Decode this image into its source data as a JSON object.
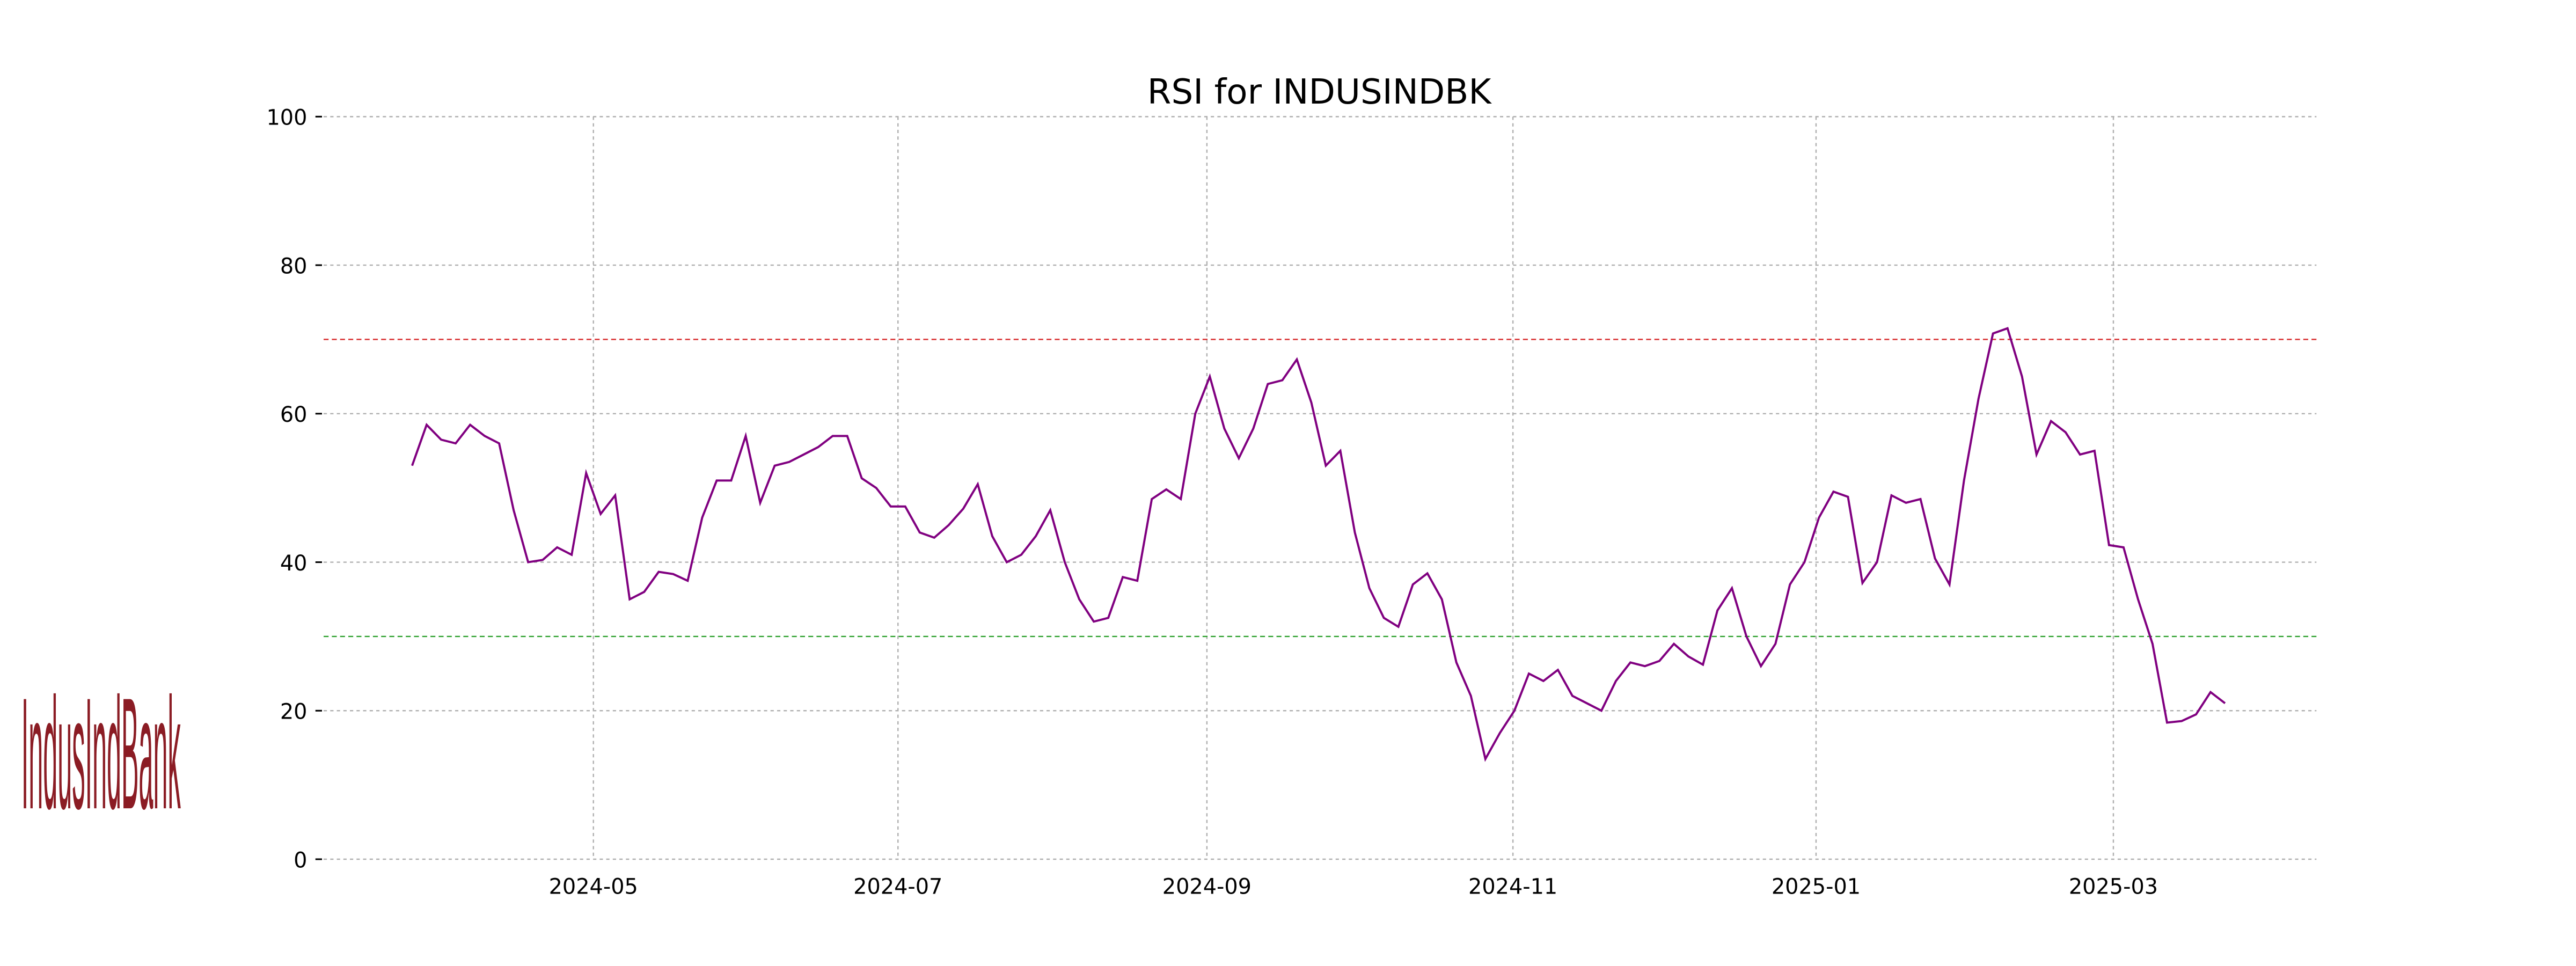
{
  "chart_data": {
    "type": "line",
    "title": "RSI for INDUSINDBK",
    "logo": "IndusIndBank",
    "series": [
      {
        "color": "#800080",
        "values": [
          53,
          58.5,
          56.5,
          56,
          58.5,
          57,
          56,
          47,
          40,
          40.3,
          42,
          41,
          52,
          46.5,
          49,
          35,
          36,
          38.7,
          38.4,
          37.5,
          46,
          51,
          51,
          57,
          48,
          53,
          53.5,
          54.5,
          55.5,
          57,
          57,
          51.3,
          50,
          47.5,
          47.5,
          44,
          43.3,
          45,
          47.2,
          50.5,
          43.5,
          40,
          41,
          43.5,
          47,
          40,
          35,
          32,
          32.5,
          38,
          37.5,
          48.5,
          49.8,
          48.5,
          60,
          65,
          58,
          54,
          58,
          64,
          64.5,
          67.3,
          61.5,
          53,
          55,
          44,
          36.5,
          32.5,
          31.3,
          37,
          38.5,
          35,
          26.5,
          22,
          13.5,
          17,
          20,
          25,
          24,
          25.5,
          22,
          21,
          20,
          24,
          26.5,
          26,
          26.7,
          29,
          27.3,
          26.2,
          33.5,
          36.5,
          30,
          26,
          29,
          37,
          40,
          46,
          49.5,
          48.8,
          37.2,
          40,
          49,
          48,
          48.5,
          40.5,
          37,
          51,
          62,
          70.8,
          71.5,
          65,
          54.5,
          59,
          57.5,
          54.5,
          55,
          42.3,
          42,
          35,
          29,
          18.4,
          18.6,
          19.5,
          22.5,
          21
        ]
      }
    ],
    "hlines": [
      {
        "value": 70,
        "color": "#d62728"
      },
      {
        "value": 30,
        "color": "#2ca02c"
      }
    ],
    "xlim": [
      -6.1,
      131.3
    ],
    "xticks": [
      {
        "value": 12.5,
        "label": "2024-05"
      },
      {
        "value": 33.5,
        "label": "2024-07"
      },
      {
        "value": 54.8,
        "label": "2024-09"
      },
      {
        "value": 75.9,
        "label": "2024-11"
      },
      {
        "value": 96.8,
        "label": "2025-01"
      },
      {
        "value": 117.3,
        "label": "2025-03"
      }
    ],
    "ylim": [
      0,
      100
    ],
    "yticks": [
      0,
      20,
      40,
      60,
      80,
      100
    ],
    "grid": true
  }
}
